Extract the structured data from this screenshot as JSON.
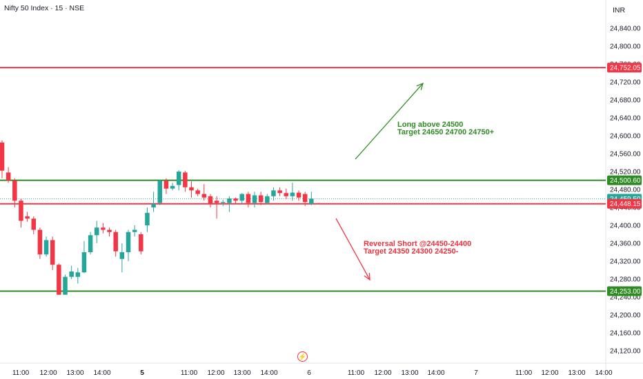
{
  "header": {
    "title": "Nifty 50 Index · 15 · NSE",
    "currency": "INR"
  },
  "price_axis": {
    "ticks": [
      "24,840.00",
      "24,800.00",
      "24,760.00",
      "24,720.00",
      "24,680.00",
      "24,640.00",
      "24,600.00",
      "24,560.00",
      "24,520.00",
      "24,480.00",
      "24,440.00",
      "24,400.00",
      "24,360.00",
      "24,320.00",
      "24,280.00",
      "24,240.00",
      "24,200.00",
      "24,160.00",
      "24,120.00"
    ]
  },
  "time_axis": {
    "labels": [
      "11:00",
      "12:00",
      "13:00",
      "14:00",
      "5",
      "11:00",
      "12:00",
      "13:00",
      "14:00",
      "6",
      "11:00",
      "12:00",
      "13:00",
      "14:00",
      "7",
      "11:00",
      "12:00",
      "13:00",
      "14:00"
    ],
    "bold_labels": [
      "5"
    ]
  },
  "levels": [
    {
      "price": 24752.05,
      "label": "24,752.05",
      "color": "#f23645",
      "line": true
    },
    {
      "price": 24500.6,
      "label": "24,500.60",
      "color": "#2e8b22",
      "line": true
    },
    {
      "price": 24459.5,
      "label": "24,459.50",
      "color": "#26a69a",
      "line": false
    },
    {
      "price": 24448.15,
      "label": "24,448.15",
      "color": "#f23645",
      "line": true
    },
    {
      "price": 24253.0,
      "label": "24,253.00",
      "color": "#2e8b22",
      "line": true
    }
  ],
  "annotations": {
    "long": "Long above 24500\nTarget 24650 24700 24750+",
    "short": "Reversal Short @24450-24400\nTarget 24350 24300 24250-"
  },
  "colors": {
    "up": "#26a69a",
    "down": "#f23645",
    "long_arrow": "#2e8b22",
    "short_arrow": "#f23645"
  },
  "chart_data": {
    "type": "candlestick",
    "title": "Nifty 50 Index · 15 · NSE",
    "ylim": [
      24105,
      24875
    ],
    "x_labels": [
      "11:00",
      "12:00",
      "13:00",
      "14:00",
      "5",
      "11:00",
      "12:00",
      "13:00",
      "14:00",
      "6",
      "11:00",
      "12:00",
      "13:00",
      "14:00",
      "7",
      "11:00",
      "12:00",
      "13:00",
      "14:00"
    ],
    "candles": [
      {
        "o": 24585,
        "h": 24590,
        "l": 24505,
        "c": 24522
      },
      {
        "o": 24518,
        "h": 24530,
        "l": 24495,
        "c": 24500
      },
      {
        "o": 24500,
        "h": 24505,
        "l": 24440,
        "c": 24455
      },
      {
        "o": 24455,
        "h": 24460,
        "l": 24395,
        "c": 24410
      },
      {
        "o": 24420,
        "h": 24430,
        "l": 24408,
        "c": 24415
      },
      {
        "o": 24415,
        "h": 24420,
        "l": 24380,
        "c": 24390
      },
      {
        "o": 24390,
        "h": 24395,
        "l": 24325,
        "c": 24335
      },
      {
        "o": 24335,
        "h": 24375,
        "l": 24330,
        "c": 24367
      },
      {
        "o": 24367,
        "h": 24375,
        "l": 24300,
        "c": 24312
      },
      {
        "o": 24312,
        "h": 24315,
        "l": 24245,
        "c": 24245
      },
      {
        "o": 24245,
        "h": 24290,
        "l": 24245,
        "c": 24285
      },
      {
        "o": 24285,
        "h": 24310,
        "l": 24280,
        "c": 24297
      },
      {
        "o": 24285,
        "h": 24305,
        "l": 24270,
        "c": 24295
      },
      {
        "o": 24295,
        "h": 24365,
        "l": 24293,
        "c": 24340
      },
      {
        "o": 24340,
        "h": 24385,
        "l": 24335,
        "c": 24378
      },
      {
        "o": 24378,
        "h": 24410,
        "l": 24360,
        "c": 24395
      },
      {
        "o": 24395,
        "h": 24405,
        "l": 24382,
        "c": 24390
      },
      {
        "o": 24390,
        "h": 24395,
        "l": 24375,
        "c": 24385
      },
      {
        "o": 24385,
        "h": 24390,
        "l": 24330,
        "c": 24342
      },
      {
        "o": 24325,
        "h": 24360,
        "l": 24295,
        "c": 24340
      },
      {
        "o": 24340,
        "h": 24390,
        "l": 24320,
        "c": 24385
      },
      {
        "o": 24385,
        "h": 24400,
        "l": 24375,
        "c": 24390
      },
      {
        "o": 24380,
        "h": 24385,
        "l": 24335,
        "c": 24342
      },
      {
        "o": 24400,
        "h": 24440,
        "l": 24385,
        "c": 24428
      },
      {
        "o": 24440,
        "h": 24475,
        "l": 24430,
        "c": 24448
      },
      {
        "o": 24450,
        "h": 24502,
        "l": 24445,
        "c": 24500
      },
      {
        "o": 24500,
        "h": 24505,
        "l": 24470,
        "c": 24482
      },
      {
        "o": 24482,
        "h": 24495,
        "l": 24478,
        "c": 24488
      },
      {
        "o": 24490,
        "h": 24523,
        "l": 24478,
        "c": 24520
      },
      {
        "o": 24518,
        "h": 24522,
        "l": 24475,
        "c": 24485
      },
      {
        "o": 24485,
        "h": 24498,
        "l": 24462,
        "c": 24478
      },
      {
        "o": 24478,
        "h": 24482,
        "l": 24465,
        "c": 24470
      },
      {
        "o": 24470,
        "h": 24492,
        "l": 24455,
        "c": 24462
      },
      {
        "o": 24465,
        "h": 24470,
        "l": 24440,
        "c": 24448
      },
      {
        "o": 24455,
        "h": 24465,
        "l": 24415,
        "c": 24450
      },
      {
        "o": 24450,
        "h": 24457,
        "l": 24443,
        "c": 24452
      },
      {
        "o": 24450,
        "h": 24465,
        "l": 24430,
        "c": 24460
      },
      {
        "o": 24460,
        "h": 24462,
        "l": 24448,
        "c": 24455
      },
      {
        "o": 24455,
        "h": 24472,
        "l": 24448,
        "c": 24470
      },
      {
        "o": 24470,
        "h": 24475,
        "l": 24440,
        "c": 24450
      },
      {
        "o": 24450,
        "h": 24475,
        "l": 24440,
        "c": 24467
      },
      {
        "o": 24467,
        "h": 24475,
        "l": 24445,
        "c": 24452
      },
      {
        "o": 24450,
        "h": 24470,
        "l": 24448,
        "c": 24465
      },
      {
        "o": 24465,
        "h": 24485,
        "l": 24455,
        "c": 24478
      },
      {
        "o": 24478,
        "h": 24485,
        "l": 24465,
        "c": 24472
      },
      {
        "o": 24472,
        "h": 24482,
        "l": 24458,
        "c": 24465
      },
      {
        "o": 24465,
        "h": 24495,
        "l": 24455,
        "c": 24473
      },
      {
        "o": 24473,
        "h": 24478,
        "l": 24455,
        "c": 24462
      },
      {
        "o": 24470,
        "h": 24475,
        "l": 24443,
        "c": 24452
      },
      {
        "o": 24448,
        "h": 24475,
        "l": 24445,
        "c": 24459.5
      }
    ]
  }
}
